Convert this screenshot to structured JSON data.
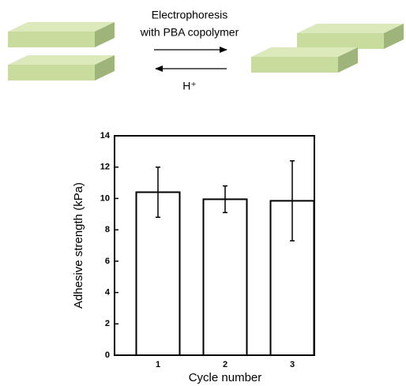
{
  "scheme": {
    "forward_label": [
      "Electrophoresis",
      "with PBA copolymer"
    ],
    "reverse_label": "H⁺"
  },
  "chart_data": {
    "type": "bar",
    "x_label": "Cycle number",
    "y_label": "Adhesive strength (kPa)",
    "categories": [
      "1",
      "2",
      "3"
    ],
    "values": [
      10.4,
      9.95,
      9.85
    ],
    "errors": [
      1.6,
      0.85,
      2.55
    ],
    "color": "#ffffff",
    "ylim": [
      0,
      14
    ],
    "yticks": [
      0,
      2,
      4,
      6,
      8,
      10,
      12,
      14
    ],
    "grid": false
  }
}
